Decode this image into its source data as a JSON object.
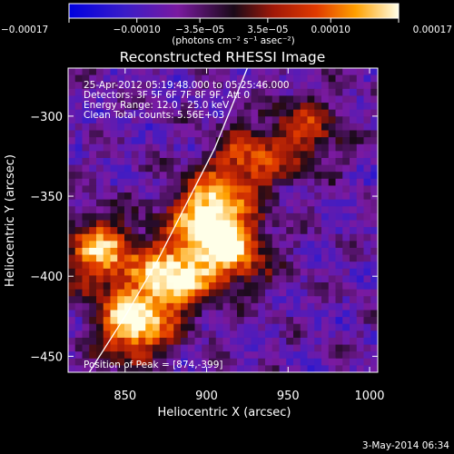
{
  "chart_data": {
    "type": "heatmap",
    "title": "Reconstructed RHESSI Image",
    "xlabel": "Heliocentric X (arcsec)",
    "ylabel": "Heliocentric Y (arcsec)",
    "xlim": [
      815,
      1005
    ],
    "ylim": [
      -460,
      -270
    ],
    "x_ticks": [
      {
        "value": 850,
        "label": "850"
      },
      {
        "value": 900,
        "label": "900"
      },
      {
        "value": 950,
        "label": "950"
      },
      {
        "value": 1000,
        "label": "1000"
      }
    ],
    "y_ticks": [
      {
        "value": -300,
        "label": "−300"
      },
      {
        "value": -350,
        "label": "−350"
      },
      {
        "value": -400,
        "label": "−400"
      },
      {
        "value": -450,
        "label": "−450"
      }
    ],
    "colorbar": {
      "label": "(photons cm⁻² s⁻¹ asec⁻²)",
      "range": [
        -0.00017,
        0.00017
      ],
      "ticks": [
        {
          "value": -0.00017,
          "label": "−0.00017"
        },
        {
          "value": -0.0001,
          "label": "−0.00010"
        },
        {
          "value": -3.5e-05,
          "label": "−3.5e−05"
        },
        {
          "value": 3.5e-05,
          "label": "3.5e−05"
        },
        {
          "value": 0.0001,
          "label": "0.00010"
        },
        {
          "value": 0.00017,
          "label": "0.00017"
        }
      ]
    },
    "annotations": {
      "time_range": "25-Apr-2012 05:19:48.000 to 05:25:46.000",
      "detectors": "Detectors: 3F 5F 6F 7F 8F 9F, Att 0",
      "energy_range": "Energy Range: 12.0 - 25.0 keV",
      "clean_counts": "Clean     Total counts: 5.56E+03",
      "peak": "Position of Peak = [874,-399]"
    },
    "peak_position": [
      874,
      -399
    ],
    "limb_curve": [
      [
        828,
        -460
      ],
      [
        850,
        -425
      ],
      [
        870,
        -390
      ],
      [
        890,
        -350
      ],
      [
        905,
        -320
      ],
      [
        915,
        -295
      ],
      [
        925,
        -270
      ]
    ],
    "bright_sources": [
      {
        "x": 855,
        "y": -430,
        "relative_intensity": 1.0
      },
      {
        "x": 880,
        "y": -400,
        "relative_intensity": 0.95
      },
      {
        "x": 900,
        "y": -360,
        "relative_intensity": 0.9
      },
      {
        "x": 915,
        "y": -385,
        "relative_intensity": 0.8
      },
      {
        "x": 835,
        "y": -385,
        "relative_intensity": 0.85
      },
      {
        "x": 925,
        "y": -330,
        "relative_intensity": 0.6
      },
      {
        "x": 960,
        "y": -310,
        "relative_intensity": 0.5
      }
    ],
    "grid": false
  },
  "footer": {
    "date": "3-May-2014 06:34"
  }
}
